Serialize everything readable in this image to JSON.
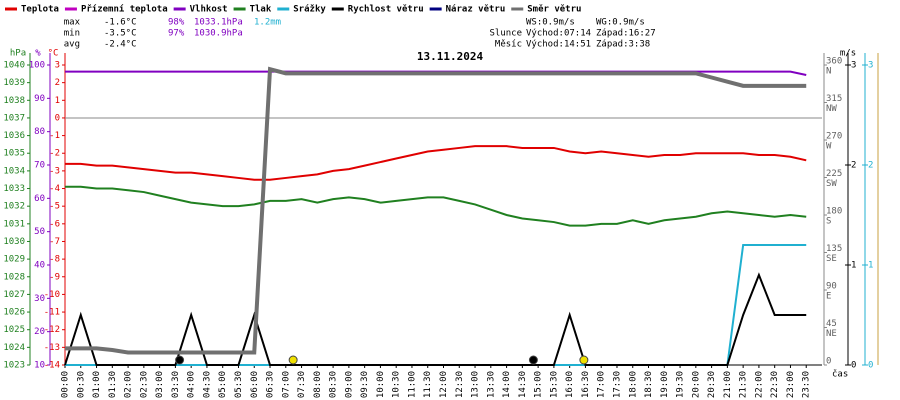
{
  "chart_data": {
    "type": "line",
    "title": "13.11.2024",
    "legend": [
      {
        "name": "Teplota",
        "color": "#e00000"
      },
      {
        "name": "Přízemní teplota",
        "color": "#c000c0"
      },
      {
        "name": "Vlhkost",
        "color": "#8000c0"
      },
      {
        "name": "Tlak",
        "color": "#208020"
      },
      {
        "name": "Srážky",
        "color": "#20b0d0"
      },
      {
        "name": "Rychlost větru",
        "color": "#000000"
      },
      {
        "name": "Náraz větru",
        "color": "#000080"
      },
      {
        "name": "Směr větru",
        "color": "#707070"
      }
    ],
    "stats": [
      [
        "max",
        "-1.6°C",
        "98%",
        "1033.1hPa",
        "1.2mm"
      ],
      [
        "min",
        "-3.5°C",
        "97%",
        "1030.9hPa"
      ],
      [
        "avg",
        "-2.4°C"
      ]
    ],
    "wind_info": [
      "WS:0.9m/s",
      "WG:0.9m/s"
    ],
    "sun": {
      "label": "Slunce",
      "rise_label": "Východ:",
      "rise": "07:14",
      "set_label": "Západ:",
      "set": "16:27"
    },
    "moon": {
      "label": "Měsíc",
      "rise_label": "Východ:",
      "rise": "14:51",
      "set_label": "Západ:",
      "set": "3:38"
    },
    "x_label": "čas",
    "categories": [
      "00:00",
      "00:30",
      "01:00",
      "01:30",
      "02:00",
      "02:30",
      "03:00",
      "03:30",
      "04:00",
      "04:30",
      "05:00",
      "05:30",
      "06:00",
      "06:30",
      "07:00",
      "07:30",
      "08:00",
      "08:30",
      "09:00",
      "09:30",
      "10:00",
      "10:30",
      "11:00",
      "11:30",
      "12:00",
      "12:30",
      "13:00",
      "13:30",
      "14:00",
      "14:30",
      "15:00",
      "15:30",
      "16:00",
      "16:30",
      "17:00",
      "17:30",
      "18:00",
      "18:30",
      "19:00",
      "19:30",
      "20:00",
      "20:30",
      "21:00",
      "21:30",
      "22:00",
      "22:30",
      "23:00",
      "23:30"
    ],
    "axes": {
      "hpa": {
        "label": "hPa",
        "color": "#208020",
        "lim": [
          1023,
          1040
        ],
        "ticks": [
          1023,
          1024,
          1025,
          1026,
          1027,
          1028,
          1029,
          1030,
          1031,
          1032,
          1033,
          1034,
          1035,
          1036,
          1037,
          1038,
          1039,
          1040
        ]
      },
      "pct": {
        "label": "%",
        "color": "#8000c0",
        "lim": [
          10,
          100
        ],
        "ticks": [
          10,
          20,
          30,
          40,
          50,
          60,
          70,
          80,
          90,
          100
        ]
      },
      "temp": {
        "label": "°C",
        "color": "#e00000",
        "lim": [
          -14,
          3
        ],
        "ticks": [
          -14,
          -13,
          -12,
          -11,
          -10,
          -9,
          -8,
          -7,
          -6,
          -5,
          -4,
          -3,
          -2,
          -1,
          0,
          1,
          2,
          3
        ]
      },
      "dir": {
        "color": "#606060",
        "lim": [
          0,
          360
        ],
        "ticks": [
          0,
          45,
          90,
          135,
          180,
          225,
          270,
          315,
          360
        ],
        "tick_names": [
          null,
          "NE",
          "E",
          "SE",
          "S",
          "SW",
          "W",
          "NW",
          "N"
        ]
      },
      "ms": {
        "label": "m/s",
        "color": "#000000",
        "lim": [
          0,
          3
        ],
        "ticks": [
          0,
          1,
          2,
          3
        ]
      },
      "mm": {
        "color": "#20b0d0",
        "lim": [
          0,
          3
        ],
        "ticks": [
          0,
          1,
          2,
          3
        ]
      }
    },
    "series": [
      {
        "name": "Teplota",
        "color": "#e00000",
        "axis": "temp",
        "values": [
          -2.6,
          -2.6,
          -2.7,
          -2.7,
          -2.8,
          -2.9,
          -3.0,
          -3.1,
          -3.1,
          -3.2,
          -3.3,
          -3.4,
          -3.5,
          -3.5,
          -3.4,
          -3.3,
          -3.2,
          -3.0,
          -2.9,
          -2.7,
          -2.5,
          -2.3,
          -2.1,
          -1.9,
          -1.8,
          -1.7,
          -1.6,
          -1.6,
          -1.6,
          -1.7,
          -1.7,
          -1.7,
          -1.9,
          -2.0,
          -1.9,
          -2.0,
          -2.1,
          -2.2,
          -2.1,
          -2.1,
          -2.0,
          -2.0,
          -2.0,
          -2.0,
          -2.1,
          -2.1,
          -2.2,
          -2.4
        ]
      },
      {
        "name": "Vlhkost",
        "color": "#8000c0",
        "axis": "pct",
        "values": [
          98,
          98,
          98,
          98,
          98,
          98,
          98,
          98,
          98,
          98,
          98,
          98,
          98,
          98,
          98,
          98,
          98,
          98,
          98,
          98,
          98,
          98,
          98,
          98,
          98,
          98,
          98,
          98,
          98,
          98,
          98,
          98,
          98,
          98,
          98,
          98,
          98,
          98,
          98,
          98,
          98,
          98,
          98,
          98,
          98,
          98,
          98,
          97
        ]
      },
      {
        "name": "Tlak",
        "color": "#208020",
        "axis": "hpa",
        "values": [
          1033.1,
          1033.1,
          1033.0,
          1033.0,
          1032.9,
          1032.8,
          1032.6,
          1032.4,
          1032.2,
          1032.1,
          1032.0,
          1032.0,
          1032.1,
          1032.3,
          1032.3,
          1032.4,
          1032.2,
          1032.4,
          1032.5,
          1032.4,
          1032.2,
          1032.3,
          1032.4,
          1032.5,
          1032.5,
          1032.3,
          1032.1,
          1031.8,
          1031.5,
          1031.3,
          1031.2,
          1031.1,
          1030.9,
          1030.9,
          1031.0,
          1031.0,
          1031.2,
          1031.0,
          1031.2,
          1031.3,
          1031.4,
          1031.6,
          1031.7,
          1031.6,
          1031.5,
          1031.4,
          1031.5,
          1031.4
        ]
      },
      {
        "name": "Srážky",
        "color": "#20b0d0",
        "axis": "mm",
        "values": [
          0,
          0,
          0,
          0,
          0,
          0,
          0,
          0,
          0,
          0,
          0,
          0,
          0,
          0,
          0,
          0,
          0,
          0,
          0,
          0,
          0,
          0,
          0,
          0,
          0,
          0,
          0,
          0,
          0,
          0,
          0,
          0,
          0,
          0,
          0,
          0,
          0,
          0,
          0,
          0,
          0,
          0,
          0,
          1.2,
          1.2,
          1.2,
          1.2,
          1.2
        ]
      },
      {
        "name": "Rychlost větru",
        "color": "#000000",
        "axis": "ms",
        "values": [
          0,
          0.5,
          0,
          0,
          0,
          0,
          0,
          0,
          0.5,
          0,
          0,
          0,
          0.5,
          0,
          0,
          0,
          0,
          0,
          0,
          0,
          0,
          0,
          0,
          0,
          0,
          0,
          0,
          0,
          0,
          0,
          0,
          0,
          0.5,
          0,
          0,
          0,
          0,
          0,
          0,
          0,
          0,
          0,
          0,
          0.5,
          0.9,
          0.5,
          0.5,
          0.5
        ]
      },
      {
        "name": "Směr větru",
        "color": "#707070",
        "axis": "dir",
        "width": 4,
        "values": [
          20,
          20,
          20,
          18,
          15,
          15,
          15,
          15,
          15,
          15,
          15,
          15,
          15,
          355,
          350,
          350,
          350,
          350,
          350,
          350,
          350,
          350,
          350,
          350,
          350,
          350,
          350,
          350,
          350,
          350,
          350,
          350,
          350,
          350,
          350,
          350,
          350,
          350,
          350,
          350,
          350,
          345,
          340,
          335,
          335,
          335,
          335,
          335
        ]
      }
    ]
  }
}
